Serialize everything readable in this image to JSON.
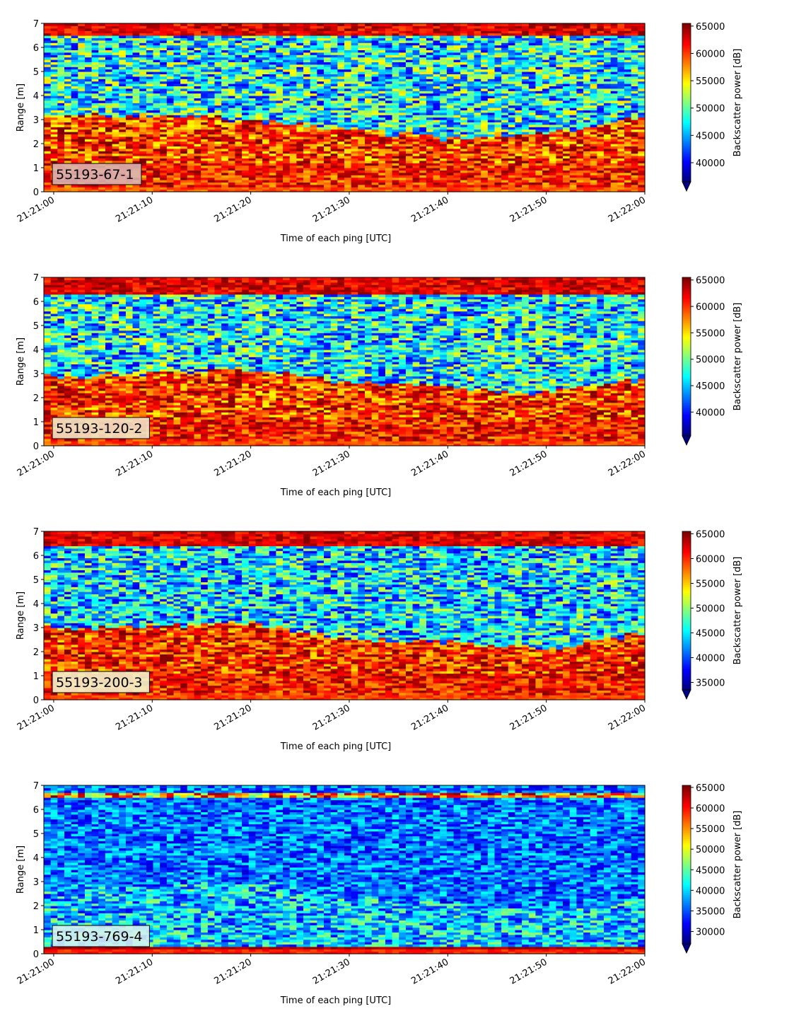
{
  "figure": {
    "xlabel": "Time of each ping [UTC]",
    "ylabel": "Range [m]",
    "colorbar_label": "Backscatter power [dB]",
    "colormap": "jet",
    "colormap_extend": "min"
  },
  "chart_data": [
    {
      "type": "heatmap",
      "panel_label": "55193-67-1",
      "panel_label_bg": "#d9b3b3",
      "xlabel": "Time of each ping [UTC]",
      "ylabel": "Range [m]",
      "x_ticks": [
        "21:21:00",
        "21:21:10",
        "21:21:20",
        "21:21:30",
        "21:21:40",
        "21:21:50",
        "21:22:00"
      ],
      "xlim": [
        "21:20:59",
        "21:22:00"
      ],
      "ylim": [
        0,
        7
      ],
      "y_ticks": [
        0,
        1,
        2,
        3,
        4,
        5,
        6,
        7
      ],
      "colorbar_label": "Backscatter power [dB]",
      "clim": [
        36500,
        65500
      ],
      "colorbar_ticks": [
        40000,
        45000,
        50000,
        55000,
        60000,
        65000
      ],
      "layers_by_time": {
        "x": [
          "21:21:00",
          "21:21:10",
          "21:21:20",
          "21:21:30",
          "21:21:40",
          "21:21:50",
          "21:22:00"
        ],
        "strong_layer_top_m": [
          3.1,
          3.2,
          3.0,
          2.6,
          2.2,
          2.5,
          3.1
        ],
        "upper_surface_band_m": [
          6.5,
          7.0
        ],
        "bottom_band_m": [
          0.2,
          1.2
        ]
      }
    },
    {
      "type": "heatmap",
      "panel_label": "55193-120-2",
      "panel_label_bg": "#f2e6c8",
      "xlabel": "Time of each ping [UTC]",
      "ylabel": "Range [m]",
      "x_ticks": [
        "21:21:00",
        "21:21:10",
        "21:21:20",
        "21:21:30",
        "21:21:40",
        "21:21:50",
        "21:22:00"
      ],
      "xlim": [
        "21:20:59",
        "21:22:00"
      ],
      "ylim": [
        0,
        7
      ],
      "y_ticks": [
        0,
        1,
        2,
        3,
        4,
        5,
        6,
        7
      ],
      "colorbar_label": "Backscatter power [dB]",
      "clim": [
        35500,
        65500
      ],
      "colorbar_ticks": [
        40000,
        45000,
        50000,
        55000,
        60000,
        65000
      ],
      "layers_by_time": {
        "x": [
          "21:21:00",
          "21:21:10",
          "21:21:20",
          "21:21:30",
          "21:21:40",
          "21:21:50",
          "21:22:00"
        ],
        "strong_layer_top_m": [
          2.9,
          3.0,
          3.2,
          2.6,
          2.5,
          2.2,
          2.8
        ],
        "upper_surface_band_m": [
          6.3,
          7.0
        ],
        "bottom_band_m": [
          0.2,
          1.1
        ]
      }
    },
    {
      "type": "heatmap",
      "panel_label": "55193-200-3",
      "panel_label_bg": "#f4f4cc",
      "xlabel": "Time of each ping [UTC]",
      "ylabel": "Range [m]",
      "x_ticks": [
        "21:21:00",
        "21:21:10",
        "21:21:20",
        "21:21:30",
        "21:21:40",
        "21:21:50",
        "21:22:00"
      ],
      "xlim": [
        "21:20:59",
        "21:22:00"
      ],
      "ylim": [
        0,
        7
      ],
      "y_ticks": [
        0,
        1,
        2,
        3,
        4,
        5,
        6,
        7
      ],
      "colorbar_label": "Backscatter power [dB]",
      "clim": [
        33500,
        65500
      ],
      "colorbar_ticks": [
        35000,
        40000,
        45000,
        50000,
        55000,
        60000,
        65000
      ],
      "layers_by_time": {
        "x": [
          "21:21:00",
          "21:21:10",
          "21:21:20",
          "21:21:30",
          "21:21:40",
          "21:21:50",
          "21:22:00"
        ],
        "strong_layer_top_m": [
          3.0,
          3.1,
          3.2,
          2.5,
          2.4,
          2.1,
          2.8
        ],
        "upper_surface_band_m": [
          6.4,
          7.0
        ],
        "bottom_band_m": [
          0.2,
          1.1
        ]
      }
    },
    {
      "type": "heatmap",
      "panel_label": "55193-769-4",
      "panel_label_bg": "#d6f2f0",
      "xlabel": "Time of each ping [UTC]",
      "ylabel": "Range [m]",
      "x_ticks": [
        "21:21:00",
        "21:21:10",
        "21:21:20",
        "21:21:30",
        "21:21:40",
        "21:21:50",
        "21:22:00"
      ],
      "xlim": [
        "21:20:59",
        "21:22:00"
      ],
      "ylim": [
        0,
        7
      ],
      "y_ticks": [
        0,
        1,
        2,
        3,
        4,
        5,
        6,
        7
      ],
      "colorbar_label": "Backscatter power [dB]",
      "clim": [
        27000,
        65500
      ],
      "colorbar_ticks": [
        30000,
        35000,
        40000,
        45000,
        50000,
        55000,
        60000,
        65000
      ],
      "layers_by_time": {
        "x": [
          "21:21:00",
          "21:21:10",
          "21:21:20",
          "21:21:30",
          "21:21:40",
          "21:21:50",
          "21:22:00"
        ],
        "strong_layer_top_m": [
          2.8,
          2.9,
          3.0,
          2.3,
          2.1,
          1.7,
          2.4
        ],
        "upper_surface_band_m": [
          6.5,
          6.7
        ],
        "bottom_band_m": [
          0.2,
          0.35
        ]
      }
    }
  ]
}
